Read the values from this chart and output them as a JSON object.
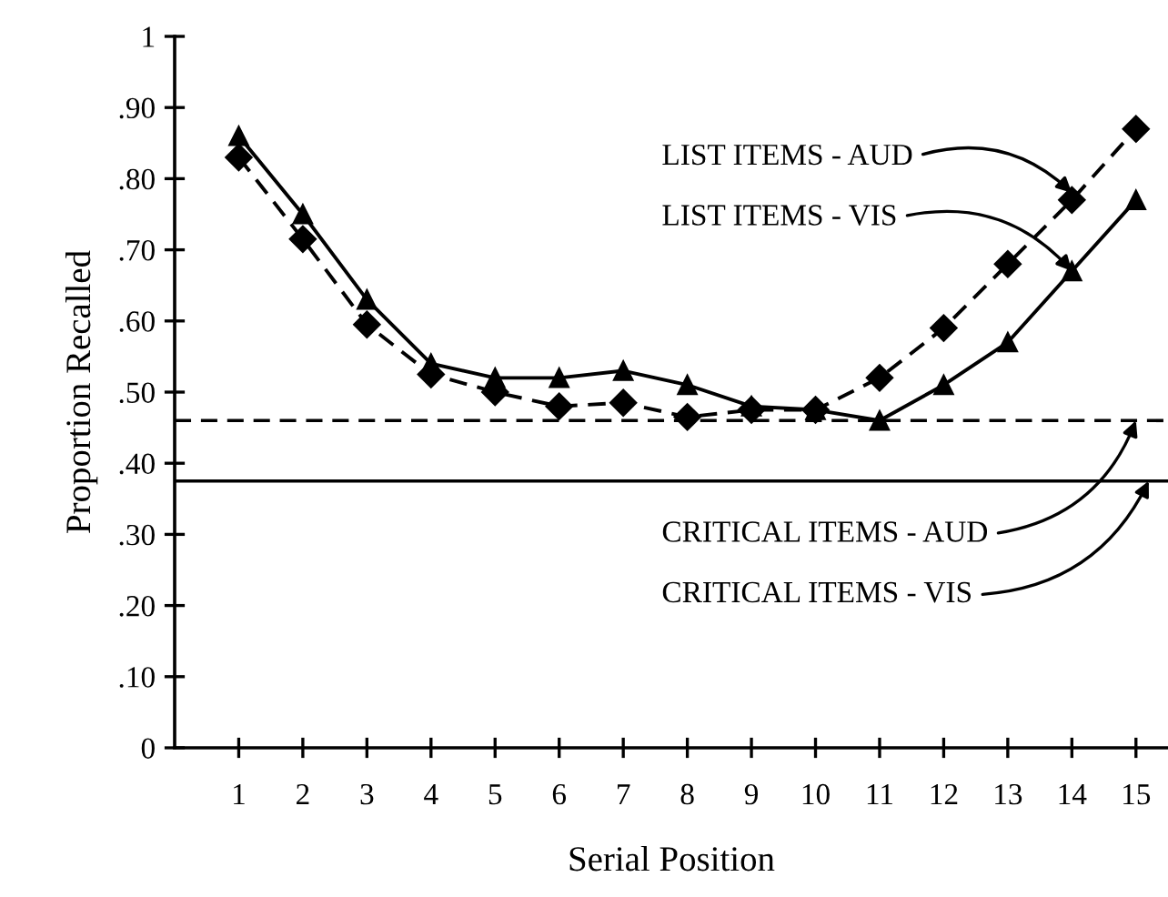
{
  "chart_data": {
    "type": "line",
    "xlabel": "Serial Position",
    "ylabel": "Proportion Recalled",
    "x": [
      1,
      2,
      3,
      4,
      5,
      6,
      7,
      8,
      9,
      10,
      11,
      12,
      13,
      14,
      15
    ],
    "series": [
      {
        "color": "#000000",
        "marker": "triangle",
        "line_style": "solid",
        "values": [
          0.86,
          0.75,
          0.63,
          0.54,
          0.52,
          0.52,
          0.53,
          0.51,
          0.48,
          0.475,
          0.46,
          0.51,
          0.57,
          0.67,
          0.77
        ]
      },
      {
        "color": "#000000",
        "marker": "diamond",
        "line_style": "dashed",
        "values": [
          0.83,
          0.715,
          0.595,
          0.525,
          0.5,
          0.48,
          0.485,
          0.465,
          0.475,
          0.475,
          0.52,
          0.59,
          0.68,
          0.77,
          0.87
        ]
      }
    ],
    "ref_lines": [
      {
        "axis": "y",
        "value": 0.46,
        "color": "#000000",
        "line_style": "dashed"
      },
      {
        "axis": "y",
        "value": 0.375,
        "color": "#000000",
        "line_style": "solid"
      }
    ],
    "annotations": [
      {
        "text": "LIST ITEMS - AUD",
        "x": 14,
        "y": 0.78
      },
      {
        "text": "LIST ITEMS - VIS",
        "x": 14,
        "y": 0.67
      },
      {
        "text": "CRITICAL ITEMS - AUD",
        "x": 15,
        "y": 0.46
      },
      {
        "text": "CRITICAL ITEMS - VIS",
        "x": 15.2,
        "y": 0.375
      }
    ],
    "xlim": [
      0,
      15.5
    ],
    "ylim": [
      0,
      1
    ],
    "xticks": [
      1,
      2,
      3,
      4,
      5,
      6,
      7,
      8,
      9,
      10,
      11,
      12,
      13,
      14,
      15
    ],
    "yticks": [
      0,
      {
        "value": 0.1,
        "label": ".10"
      },
      {
        "value": 0.2,
        "label": ".20"
      },
      {
        "value": 0.3,
        "label": ".30"
      },
      {
        "value": 0.4,
        "label": ".40"
      },
      {
        "value": 0.5,
        "label": ".50"
      },
      {
        "value": 0.6,
        "label": ".60"
      },
      {
        "value": 0.7,
        "label": ".70"
      },
      {
        "value": 0.8,
        "label": ".80"
      },
      {
        "value": 0.9,
        "label": ".90"
      },
      1
    ],
    "grid": false,
    "legend": false
  }
}
